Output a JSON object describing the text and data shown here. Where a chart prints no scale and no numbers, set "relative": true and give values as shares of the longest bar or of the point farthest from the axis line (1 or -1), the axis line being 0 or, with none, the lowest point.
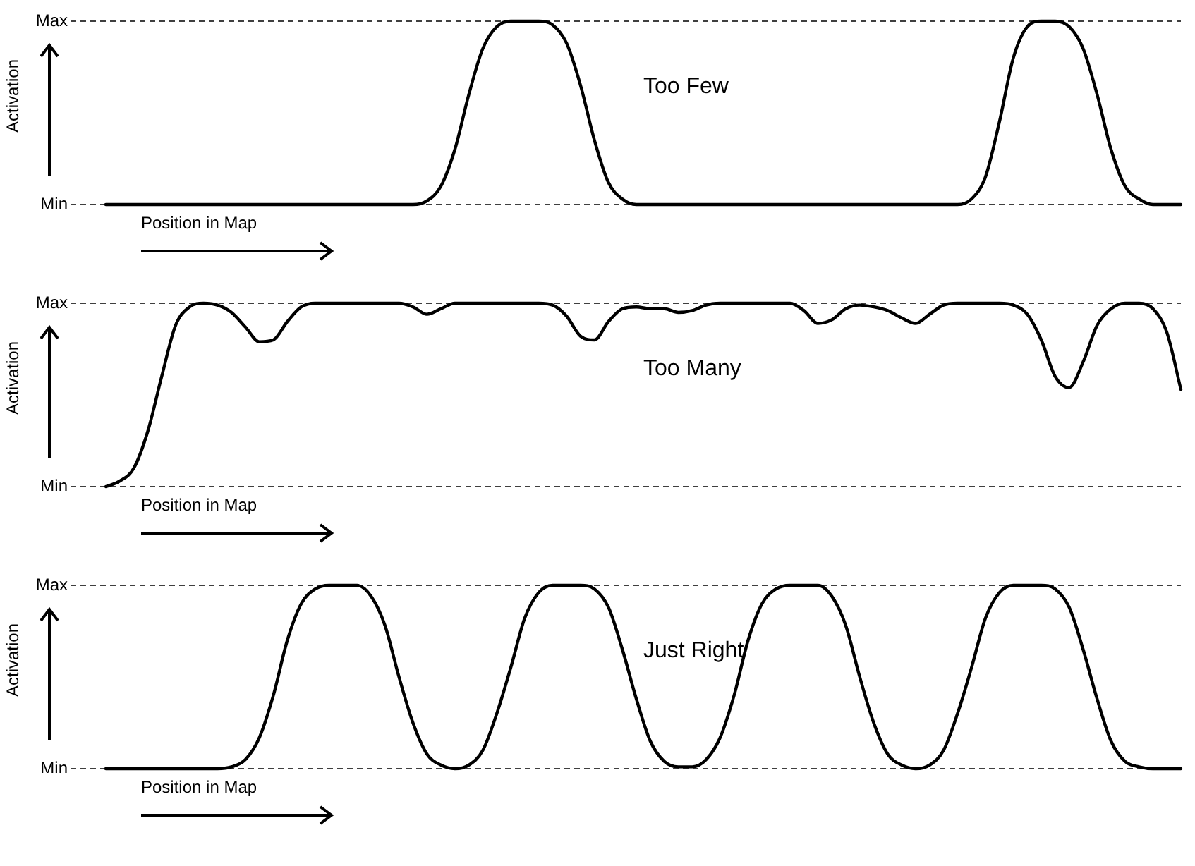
{
  "chart_data": [
    {
      "type": "line",
      "relative": true,
      "ylabel": "Activation",
      "xlabel": "Position in Map",
      "annotations": [
        "Too Few"
      ],
      "color": "#000000",
      "marker": "none",
      "tick_labels": false,
      "ref_lines": [
        {
          "axis": "y",
          "value": 0,
          "label": "Min",
          "line_style": "dashed"
        },
        {
          "axis": "y",
          "value": 1,
          "label": "Max",
          "line_style": "dashed"
        }
      ],
      "categories": [
        null,
        null,
        null,
        null,
        null,
        null,
        null,
        null,
        null,
        null,
        null,
        null,
        null,
        null,
        null,
        null,
        null,
        null,
        null,
        null,
        null,
        null,
        null,
        null,
        null,
        null,
        null,
        null,
        null,
        null,
        null,
        null,
        null,
        null,
        null,
        null,
        null,
        null,
        null,
        null,
        null,
        null,
        null,
        null,
        null,
        null,
        null,
        null,
        null,
        null,
        null,
        null,
        null,
        null,
        null,
        null,
        null,
        null,
        null,
        null,
        null,
        null,
        null,
        null,
        null,
        null,
        null,
        null,
        null,
        null,
        null,
        null,
        null,
        null,
        null,
        null,
        null,
        null
      ],
      "values": [
        0,
        0,
        0,
        0,
        0,
        0,
        0,
        0,
        0,
        0,
        0,
        0,
        0,
        0,
        0,
        0,
        0,
        0,
        0,
        0,
        0,
        0,
        0,
        0.02,
        0.1,
        0.3,
        0.6,
        0.85,
        0.97,
        1,
        1,
        1,
        0.98,
        0.88,
        0.65,
        0.35,
        0.12,
        0.03,
        0,
        0,
        0,
        0,
        0,
        0,
        0,
        0,
        0,
        0,
        0,
        0,
        0,
        0,
        0,
        0,
        0,
        0,
        0,
        0,
        0,
        0,
        0,
        0,
        0.03,
        0.15,
        0.45,
        0.8,
        0.97,
        1,
        1,
        0.97,
        0.85,
        0.6,
        0.3,
        0.1,
        0.03,
        0,
        0,
        0
      ]
    },
    {
      "type": "line",
      "relative": true,
      "ylabel": "Activation",
      "xlabel": "Position in Map",
      "annotations": [
        "Too Many"
      ],
      "color": "#000000",
      "marker": "none",
      "tick_labels": false,
      "ref_lines": [
        {
          "axis": "y",
          "value": 0,
          "label": "Min",
          "line_style": "dashed"
        },
        {
          "axis": "y",
          "value": 1,
          "label": "Max",
          "line_style": "dashed"
        }
      ],
      "categories": [
        null,
        null,
        null,
        null,
        null,
        null,
        null,
        null,
        null,
        null,
        null,
        null,
        null,
        null,
        null,
        null,
        null,
        null,
        null,
        null,
        null,
        null,
        null,
        null,
        null,
        null,
        null,
        null,
        null,
        null,
        null,
        null,
        null,
        null,
        null,
        null,
        null,
        null,
        null,
        null,
        null,
        null,
        null,
        null,
        null,
        null,
        null,
        null,
        null,
        null,
        null,
        null,
        null,
        null,
        null,
        null,
        null,
        null,
        null,
        null,
        null,
        null,
        null,
        null,
        null,
        null,
        null,
        null,
        null,
        null,
        null,
        null,
        null,
        null,
        null,
        null,
        null,
        null
      ],
      "values": [
        0,
        0.03,
        0.1,
        0.3,
        0.6,
        0.88,
        0.98,
        1,
        0.99,
        0.95,
        0.87,
        0.79,
        0.8,
        0.9,
        0.98,
        1,
        1,
        1,
        1,
        1,
        1,
        1,
        0.98,
        0.94,
        0.97,
        1,
        1,
        1,
        1,
        1,
        1,
        1,
        0.99,
        0.93,
        0.82,
        0.8,
        0.9,
        0.97,
        0.98,
        0.97,
        0.97,
        0.95,
        0.96,
        0.99,
        1,
        1,
        1,
        1,
        1,
        1,
        0.96,
        0.89,
        0.91,
        0.97,
        0.99,
        0.98,
        0.96,
        0.92,
        0.89,
        0.94,
        0.99,
        1,
        1,
        1,
        1,
        0.99,
        0.94,
        0.8,
        0.6,
        0.54,
        0.68,
        0.88,
        0.97,
        1,
        1,
        0.97,
        0.84,
        0.53
      ]
    },
    {
      "type": "line",
      "relative": true,
      "ylabel": "Activation",
      "xlabel": "Position in Map",
      "annotations": [
        "Just Right"
      ],
      "color": "#000000",
      "marker": "none",
      "tick_labels": false,
      "ref_lines": [
        {
          "axis": "y",
          "value": 0,
          "label": "Min",
          "line_style": "dashed"
        },
        {
          "axis": "y",
          "value": 1,
          "label": "Max",
          "line_style": "dashed"
        }
      ],
      "categories": [
        null,
        null,
        null,
        null,
        null,
        null,
        null,
        null,
        null,
        null,
        null,
        null,
        null,
        null,
        null,
        null,
        null,
        null,
        null,
        null,
        null,
        null,
        null,
        null,
        null,
        null,
        null,
        null,
        null,
        null,
        null,
        null,
        null,
        null,
        null,
        null,
        null,
        null,
        null,
        null,
        null,
        null,
        null,
        null,
        null,
        null,
        null,
        null,
        null,
        null,
        null,
        null,
        null,
        null,
        null,
        null,
        null,
        null,
        null,
        null,
        null,
        null,
        null,
        null,
        null,
        null,
        null,
        null,
        null,
        null,
        null,
        null,
        null,
        null,
        null,
        null,
        null,
        null
      ],
      "values": [
        0,
        0,
        0,
        0,
        0,
        0,
        0,
        0,
        0,
        0.01,
        0.05,
        0.17,
        0.4,
        0.7,
        0.9,
        0.98,
        1,
        1,
        1,
        0.94,
        0.78,
        0.5,
        0.25,
        0.08,
        0.02,
        0,
        0.02,
        0.1,
        0.3,
        0.55,
        0.82,
        0.96,
        1,
        1,
        1,
        0.98,
        0.88,
        0.65,
        0.38,
        0.15,
        0.04,
        0.01,
        0.01,
        0.05,
        0.17,
        0.4,
        0.7,
        0.9,
        0.98,
        1,
        1,
        1,
        0.94,
        0.78,
        0.5,
        0.25,
        0.08,
        0.02,
        0,
        0.02,
        0.1,
        0.3,
        0.55,
        0.82,
        0.96,
        1,
        1,
        1,
        0.98,
        0.88,
        0.65,
        0.38,
        0.15,
        0.04,
        0.01,
        0,
        0,
        0
      ]
    }
  ]
}
